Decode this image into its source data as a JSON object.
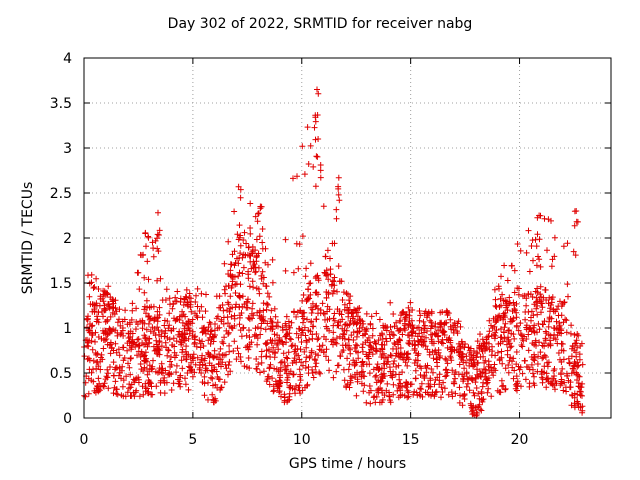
{
  "chart_data": {
    "type": "scatter",
    "title": "Day 302 of 2022, SRMTID for receiver nabg",
    "xlabel": "GPS time / hours",
    "ylabel": "SRMTID / TECUs",
    "xlim": [
      0,
      24.2
    ],
    "ylim": [
      0,
      4
    ],
    "xticks": [
      0,
      5,
      10,
      15,
      20
    ],
    "yticks": [
      0,
      0.5,
      1,
      1.5,
      2,
      2.5,
      3,
      3.5,
      4
    ],
    "xtick_labels": [
      "0",
      "5",
      "10",
      "15",
      "20"
    ],
    "ytick_labels": [
      "0",
      "0.5",
      "1",
      "1.5",
      "2",
      "2.5",
      "3",
      "3.5",
      "4"
    ],
    "grid": true,
    "marker": "+",
    "color": "#e00000",
    "x_range_of_data": [
      0,
      22.9
    ],
    "point_count": 2500,
    "series": [
      {
        "name": "SRMTID",
        "profile_note": "approximate hourly median level and upper spread read from the plot",
        "hours": [
          0,
          1,
          2,
          3,
          4,
          5,
          6,
          7,
          8,
          9,
          10,
          11,
          12,
          13,
          14,
          15,
          16,
          17,
          18,
          19,
          20,
          21,
          22,
          22.9
        ],
        "median": [
          0.7,
          0.9,
          0.6,
          0.75,
          0.8,
          0.85,
          0.6,
          1.3,
          1.2,
          0.55,
          0.8,
          1.2,
          0.9,
          0.6,
          0.6,
          0.75,
          0.7,
          0.7,
          0.35,
          0.8,
          0.85,
          0.9,
          0.8,
          0.3
        ],
        "upper": [
          1.7,
          1.5,
          1.2,
          2.3,
          1.4,
          1.5,
          1.3,
          2.55,
          2.35,
          1.6,
          3.65,
          2.65,
          1.4,
          1.2,
          1.3,
          1.3,
          1.2,
          1.2,
          0.8,
          1.55,
          2.25,
          2.25,
          2.3,
          0.8
        ],
        "peaks": [
          {
            "x": 3.4,
            "y": 2.28
          },
          {
            "x": 7.1,
            "y": 2.57
          },
          {
            "x": 8.1,
            "y": 2.35
          },
          {
            "x": 10.7,
            "y": 3.65
          },
          {
            "x": 10.75,
            "y": 3.1
          },
          {
            "x": 11.7,
            "y": 2.67
          },
          {
            "x": 20.9,
            "y": 2.25
          },
          {
            "x": 22.6,
            "y": 2.3
          }
        ]
      }
    ]
  }
}
